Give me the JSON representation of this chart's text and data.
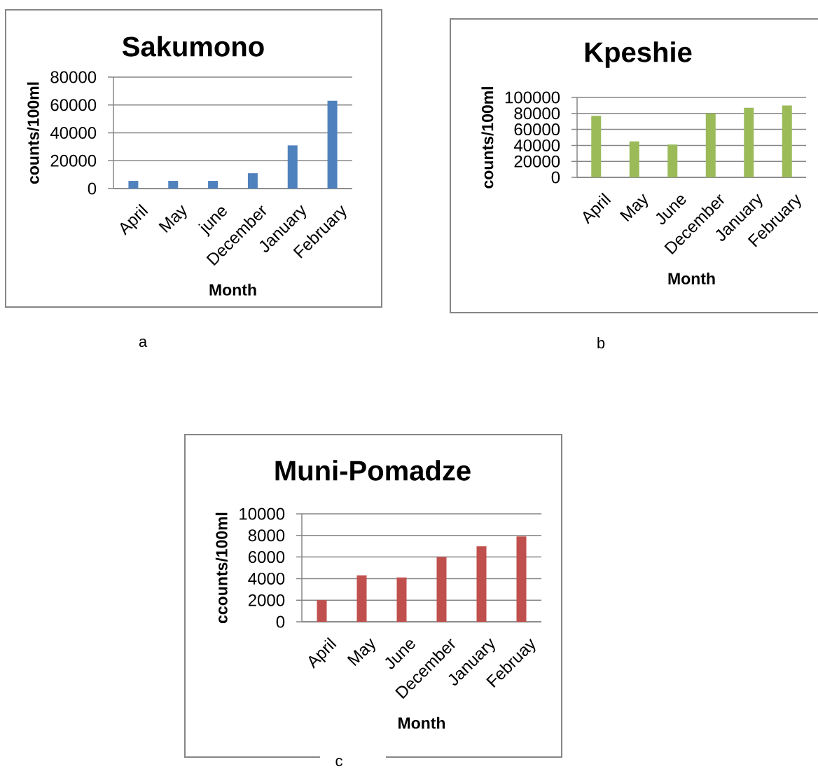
{
  "chart_data": [
    {
      "type": "bar",
      "title": "Sakumono",
      "xlabel": "Month",
      "ylabel": "counts/100ml",
      "categories": [
        "April",
        "May",
        "june",
        "December",
        "January",
        "February"
      ],
      "values": [
        5500,
        5500,
        5500,
        11000,
        31000,
        63000
      ],
      "color": "#4f81bd",
      "ylim": [
        0,
        80000
      ],
      "yticks": [
        0,
        20000,
        40000,
        60000,
        80000
      ],
      "grid": "y",
      "annotations": [
        "a"
      ]
    },
    {
      "type": "bar",
      "title": "Kpeshie",
      "xlabel": "Month",
      "ylabel": "counts/100ml",
      "categories": [
        "April",
        "May",
        "June",
        "December",
        "January",
        "February"
      ],
      "values": [
        77000,
        45000,
        41000,
        80000,
        87000,
        90000
      ],
      "color": "#9bbb59",
      "ylim": [
        0,
        100000
      ],
      "yticks": [
        0,
        20000,
        40000,
        60000,
        80000,
        100000
      ],
      "grid": "y",
      "annotations": [
        "b"
      ]
    },
    {
      "type": "bar",
      "title": "Muni-Pomadze",
      "xlabel": "Month",
      "ylabel": "ccounts/100ml",
      "categories": [
        "April",
        "May",
        "June",
        "December",
        "January",
        "Februay"
      ],
      "values": [
        2000,
        4300,
        4100,
        6000,
        7000,
        7900
      ],
      "color": "#c0504d",
      "ylim": [
        0,
        10000
      ],
      "yticks": [
        0,
        2000,
        4000,
        6000,
        8000,
        10000
      ],
      "grid": "y",
      "annotations": [
        "c"
      ]
    }
  ]
}
